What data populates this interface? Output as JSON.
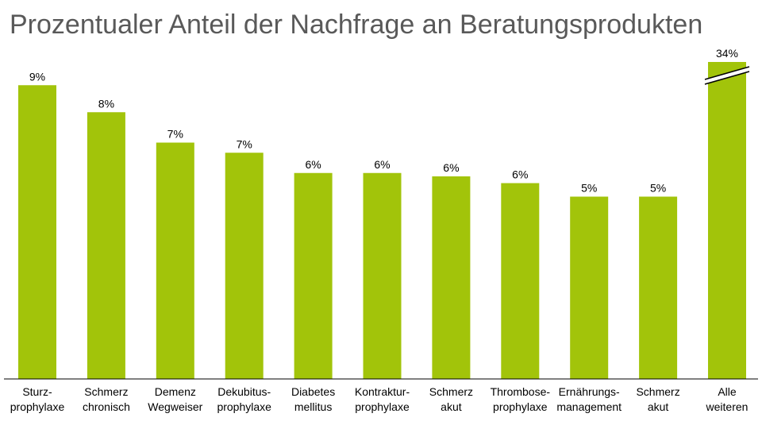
{
  "chart_data": {
    "type": "bar",
    "title": "Prozentualer Anteil der Nachfrage an Beratungsprodukten",
    "categories": [
      [
        "Sturz-",
        "prophylaxe"
      ],
      [
        "Schmerz",
        "chronisch"
      ],
      [
        "Demenz",
        "Wegweiser"
      ],
      [
        "Dekubitus-",
        "prophylaxe"
      ],
      [
        "Diabetes",
        "mellitus"
      ],
      [
        "Kontraktur-",
        "prophylaxe"
      ],
      [
        "Schmerz",
        "akut"
      ],
      [
        "Thrombose-",
        "prophylaxe"
      ],
      [
        "Ernährungs-",
        "management"
      ],
      [
        "Schmerz",
        "akut"
      ],
      [
        "Alle",
        "weiteren"
      ]
    ],
    "values": [
      8.7,
      7.9,
      7.0,
      6.7,
      6.1,
      6.1,
      6.0,
      5.8,
      5.4,
      5.4,
      34
    ],
    "data_labels": [
      "9%",
      "8%",
      "7%",
      "7%",
      "6%",
      "6%",
      "6%",
      "6%",
      "5%",
      "5%",
      "34%"
    ],
    "broken_axis_bars": [
      10
    ],
    "bar_color": "#a2c40a",
    "grid": false,
    "legend": "none",
    "xlabel": "",
    "ylabel": ""
  }
}
